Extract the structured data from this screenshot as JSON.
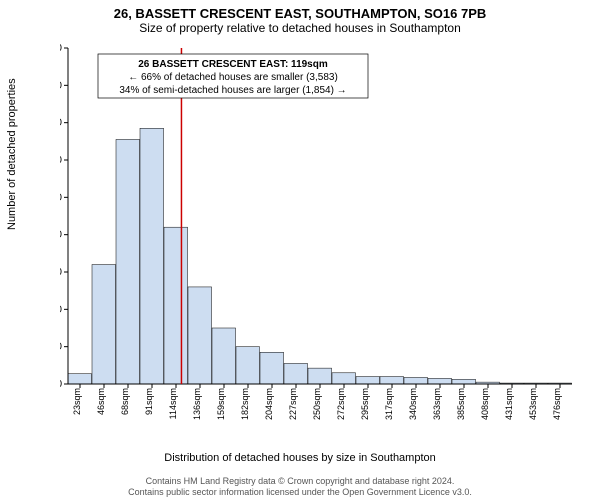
{
  "title_main": "26, BASSETT CRESCENT EAST, SOUTHAMPTON, SO16 7PB",
  "title_sub": "Size of property relative to detached houses in Southampton",
  "y_label": "Number of detached properties",
  "x_label": "Distribution of detached houses by size in Southampton",
  "attribution_line1": "Contains HM Land Registry data © Crown copyright and database right 2024.",
  "attribution_line2": "Contains public sector information licensed under the Open Government Licence v3.0.",
  "chart": {
    "type": "histogram",
    "background_color": "#ffffff",
    "bar_fill": "#cdddf1",
    "bar_stroke": "#000000",
    "marker_color": "#cc0000",
    "axis_color": "#000000",
    "title_fontsize": 13,
    "sub_fontsize": 12,
    "label_fontsize": 11,
    "tick_fontsize": 10,
    "ylim": [
      0,
      1800
    ],
    "ytick_step": 200,
    "x_categories": [
      "23sqm",
      "46sqm",
      "68sqm",
      "91sqm",
      "114sqm",
      "136sqm",
      "159sqm",
      "182sqm",
      "204sqm",
      "227sqm",
      "250sqm",
      "272sqm",
      "295sqm",
      "317sqm",
      "340sqm",
      "363sqm",
      "385sqm",
      "408sqm",
      "431sqm",
      "453sqm",
      "476sqm"
    ],
    "values": [
      55,
      640,
      1310,
      1370,
      840,
      520,
      300,
      200,
      170,
      110,
      85,
      60,
      40,
      40,
      35,
      30,
      25,
      10,
      5,
      5,
      5
    ],
    "marker_value_sqm": 119,
    "annotation": {
      "line1": "26 BASSETT CRESCENT EAST: 119sqm",
      "line2": "← 66% of detached houses are smaller (3,583)",
      "line3": "34% of semi-detached houses are larger (1,854) →",
      "box_stroke": "#000000",
      "box_fill": "#ffffff"
    }
  }
}
